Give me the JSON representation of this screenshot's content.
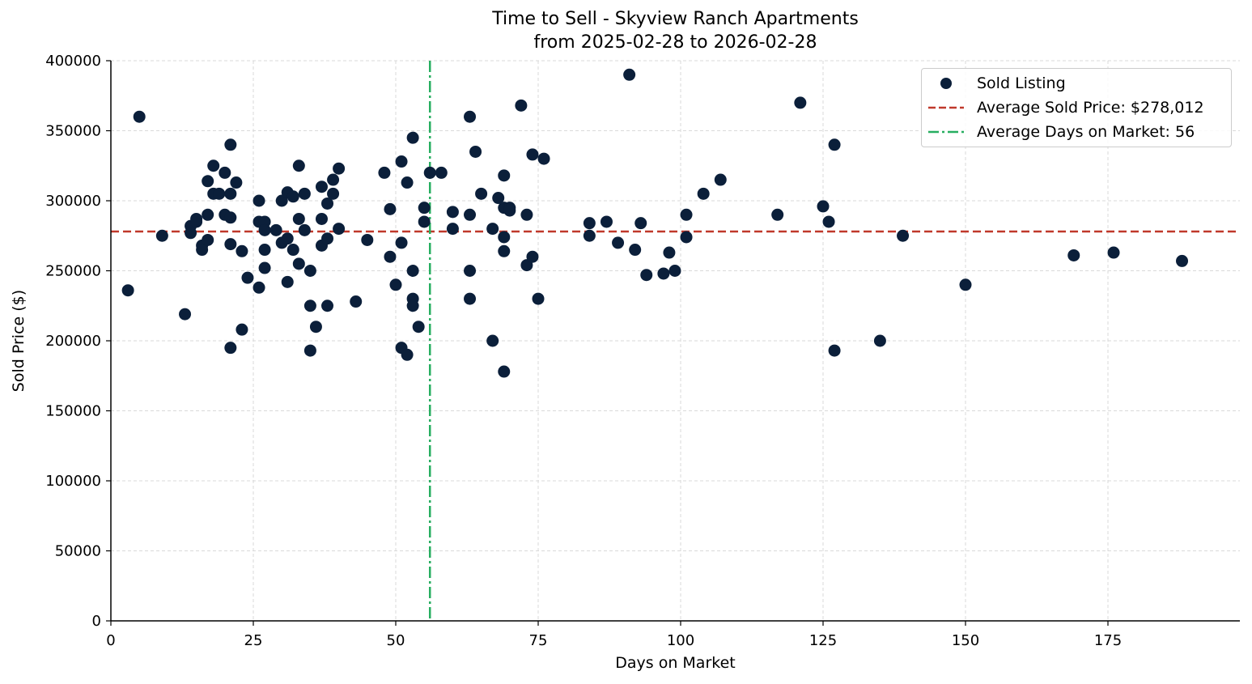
{
  "chart_data": {
    "type": "scatter",
    "title": "Time to Sell - Skyview Ranch Apartments",
    "subtitle": "from 2025-02-28 to 2026-02-28",
    "xlabel": "Days on Market",
    "ylabel": "Sold Price ($)",
    "xlim": [
      0,
      198
    ],
    "ylim": [
      0,
      400000
    ],
    "x_ticks": [
      0,
      25,
      50,
      75,
      100,
      125,
      150,
      175
    ],
    "y_ticks": [
      0,
      50000,
      100000,
      150000,
      200000,
      250000,
      300000,
      350000,
      400000
    ],
    "grid": true,
    "legend_position": "upper right",
    "legend": [
      "Sold Listing",
      "Average Sold Price: $278,012",
      "Average Days on Market: 56"
    ],
    "reference_lines": {
      "avg_price": {
        "value": 278012,
        "orientation": "horizontal",
        "style": "dashed",
        "color": "#c0392b"
      },
      "avg_days": {
        "value": 56,
        "orientation": "vertical",
        "style": "dashdot",
        "color": "#27ae60"
      }
    },
    "series": [
      {
        "name": "Sold Listing",
        "color": "#0b1f3a",
        "points": [
          [
            3,
            236000
          ],
          [
            5,
            360000
          ],
          [
            9,
            275000
          ],
          [
            13,
            219000
          ],
          [
            14,
            282000
          ],
          [
            14,
            277000
          ],
          [
            15,
            285000
          ],
          [
            15,
            287000
          ],
          [
            16,
            268000
          ],
          [
            16,
            265000
          ],
          [
            17,
            272000
          ],
          [
            17,
            290000
          ],
          [
            17,
            314000
          ],
          [
            18,
            305000
          ],
          [
            18,
            325000
          ],
          [
            19,
            305000
          ],
          [
            20,
            320000
          ],
          [
            20,
            290000
          ],
          [
            21,
            288000
          ],
          [
            21,
            305000
          ],
          [
            21,
            340000
          ],
          [
            21,
            269000
          ],
          [
            21,
            195000
          ],
          [
            22,
            313000
          ],
          [
            23,
            264000
          ],
          [
            23,
            208000
          ],
          [
            24,
            245000
          ],
          [
            26,
            238000
          ],
          [
            26,
            300000
          ],
          [
            26,
            285000
          ],
          [
            27,
            285000
          ],
          [
            27,
            279000
          ],
          [
            27,
            265000
          ],
          [
            27,
            252000
          ],
          [
            29,
            279000
          ],
          [
            30,
            300000
          ],
          [
            30,
            270000
          ],
          [
            31,
            306000
          ],
          [
            31,
            273000
          ],
          [
            31,
            242000
          ],
          [
            32,
            303000
          ],
          [
            32,
            265000
          ],
          [
            33,
            325000
          ],
          [
            33,
            287000
          ],
          [
            33,
            255000
          ],
          [
            34,
            305000
          ],
          [
            34,
            279000
          ],
          [
            35,
            250000
          ],
          [
            35,
            225000
          ],
          [
            35,
            193000
          ],
          [
            36,
            210000
          ],
          [
            37,
            310000
          ],
          [
            37,
            287000
          ],
          [
            37,
            268000
          ],
          [
            38,
            298000
          ],
          [
            38,
            273000
          ],
          [
            38,
            225000
          ],
          [
            39,
            315000
          ],
          [
            39,
            305000
          ],
          [
            40,
            323000
          ],
          [
            40,
            280000
          ],
          [
            43,
            228000
          ],
          [
            45,
            272000
          ],
          [
            48,
            320000
          ],
          [
            49,
            294000
          ],
          [
            49,
            260000
          ],
          [
            50,
            240000
          ],
          [
            51,
            328000
          ],
          [
            51,
            270000
          ],
          [
            51,
            195000
          ],
          [
            52,
            313000
          ],
          [
            52,
            190000
          ],
          [
            53,
            345000
          ],
          [
            53,
            250000
          ],
          [
            53,
            230000
          ],
          [
            53,
            225000
          ],
          [
            54,
            210000
          ],
          [
            55,
            295000
          ],
          [
            55,
            285000
          ],
          [
            56,
            320000
          ],
          [
            58,
            320000
          ],
          [
            60,
            292000
          ],
          [
            60,
            280000
          ],
          [
            63,
            360000
          ],
          [
            63,
            290000
          ],
          [
            63,
            250000
          ],
          [
            63,
            230000
          ],
          [
            64,
            335000
          ],
          [
            65,
            305000
          ],
          [
            67,
            280000
          ],
          [
            67,
            200000
          ],
          [
            68,
            302000
          ],
          [
            69,
            318000
          ],
          [
            69,
            295000
          ],
          [
            69,
            274000
          ],
          [
            69,
            264000
          ],
          [
            69,
            178000
          ],
          [
            70,
            295000
          ],
          [
            70,
            293000
          ],
          [
            72,
            368000
          ],
          [
            73,
            290000
          ],
          [
            73,
            254000
          ],
          [
            74,
            333000
          ],
          [
            74,
            260000
          ],
          [
            75,
            230000
          ],
          [
            76,
            330000
          ],
          [
            84,
            284000
          ],
          [
            84,
            275000
          ],
          [
            87,
            285000
          ],
          [
            89,
            270000
          ],
          [
            91,
            390000
          ],
          [
            92,
            265000
          ],
          [
            93,
            284000
          ],
          [
            94,
            247000
          ],
          [
            97,
            248000
          ],
          [
            98,
            263000
          ],
          [
            99,
            250000
          ],
          [
            101,
            290000
          ],
          [
            101,
            274000
          ],
          [
            104,
            305000
          ],
          [
            107,
            315000
          ],
          [
            117,
            290000
          ],
          [
            121,
            370000
          ],
          [
            125,
            296000
          ],
          [
            126,
            285000
          ],
          [
            127,
            340000
          ],
          [
            127,
            193000
          ],
          [
            135,
            200000
          ],
          [
            139,
            275000
          ],
          [
            150,
            240000
          ],
          [
            169,
            261000
          ],
          [
            176,
            263000
          ],
          [
            188,
            257000
          ]
        ]
      }
    ]
  },
  "legend": {
    "items": [
      {
        "label": "Sold Listing",
        "symbol": "dot",
        "color": "#0b1f3a"
      },
      {
        "label": "Average Sold Price: $278,012",
        "symbol": "dashed-line",
        "color": "#c0392b"
      },
      {
        "label": "Average Days on Market: 56",
        "symbol": "dashdot-line",
        "color": "#27ae60"
      }
    ]
  }
}
